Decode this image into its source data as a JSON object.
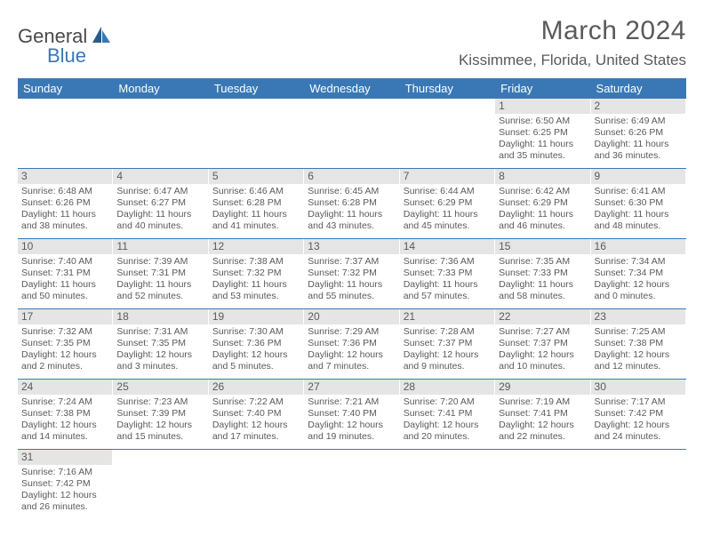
{
  "brand": {
    "part1": "General",
    "part2": "Blue"
  },
  "title": "March 2024",
  "location": "Kissimmee, Florida, United States",
  "colors": {
    "header_bg": "#3a78b5",
    "header_text": "#ffffff",
    "daynum_bg": "#e5e5e5",
    "text": "#5a5a5a",
    "row_divider": "#3a78b5"
  },
  "day_headers": [
    "Sunday",
    "Monday",
    "Tuesday",
    "Wednesday",
    "Thursday",
    "Friday",
    "Saturday"
  ],
  "weeks": [
    [
      {
        "n": "",
        "lines": []
      },
      {
        "n": "",
        "lines": []
      },
      {
        "n": "",
        "lines": []
      },
      {
        "n": "",
        "lines": []
      },
      {
        "n": "",
        "lines": []
      },
      {
        "n": "1",
        "lines": [
          "Sunrise: 6:50 AM",
          "Sunset: 6:25 PM",
          "Daylight: 11 hours",
          "and 35 minutes."
        ]
      },
      {
        "n": "2",
        "lines": [
          "Sunrise: 6:49 AM",
          "Sunset: 6:26 PM",
          "Daylight: 11 hours",
          "and 36 minutes."
        ]
      }
    ],
    [
      {
        "n": "3",
        "lines": [
          "Sunrise: 6:48 AM",
          "Sunset: 6:26 PM",
          "Daylight: 11 hours",
          "and 38 minutes."
        ]
      },
      {
        "n": "4",
        "lines": [
          "Sunrise: 6:47 AM",
          "Sunset: 6:27 PM",
          "Daylight: 11 hours",
          "and 40 minutes."
        ]
      },
      {
        "n": "5",
        "lines": [
          "Sunrise: 6:46 AM",
          "Sunset: 6:28 PM",
          "Daylight: 11 hours",
          "and 41 minutes."
        ]
      },
      {
        "n": "6",
        "lines": [
          "Sunrise: 6:45 AM",
          "Sunset: 6:28 PM",
          "Daylight: 11 hours",
          "and 43 minutes."
        ]
      },
      {
        "n": "7",
        "lines": [
          "Sunrise: 6:44 AM",
          "Sunset: 6:29 PM",
          "Daylight: 11 hours",
          "and 45 minutes."
        ]
      },
      {
        "n": "8",
        "lines": [
          "Sunrise: 6:42 AM",
          "Sunset: 6:29 PM",
          "Daylight: 11 hours",
          "and 46 minutes."
        ]
      },
      {
        "n": "9",
        "lines": [
          "Sunrise: 6:41 AM",
          "Sunset: 6:30 PM",
          "Daylight: 11 hours",
          "and 48 minutes."
        ]
      }
    ],
    [
      {
        "n": "10",
        "lines": [
          "Sunrise: 7:40 AM",
          "Sunset: 7:31 PM",
          "Daylight: 11 hours",
          "and 50 minutes."
        ]
      },
      {
        "n": "11",
        "lines": [
          "Sunrise: 7:39 AM",
          "Sunset: 7:31 PM",
          "Daylight: 11 hours",
          "and 52 minutes."
        ]
      },
      {
        "n": "12",
        "lines": [
          "Sunrise: 7:38 AM",
          "Sunset: 7:32 PM",
          "Daylight: 11 hours",
          "and 53 minutes."
        ]
      },
      {
        "n": "13",
        "lines": [
          "Sunrise: 7:37 AM",
          "Sunset: 7:32 PM",
          "Daylight: 11 hours",
          "and 55 minutes."
        ]
      },
      {
        "n": "14",
        "lines": [
          "Sunrise: 7:36 AM",
          "Sunset: 7:33 PM",
          "Daylight: 11 hours",
          "and 57 minutes."
        ]
      },
      {
        "n": "15",
        "lines": [
          "Sunrise: 7:35 AM",
          "Sunset: 7:33 PM",
          "Daylight: 11 hours",
          "and 58 minutes."
        ]
      },
      {
        "n": "16",
        "lines": [
          "Sunrise: 7:34 AM",
          "Sunset: 7:34 PM",
          "Daylight: 12 hours",
          "and 0 minutes."
        ]
      }
    ],
    [
      {
        "n": "17",
        "lines": [
          "Sunrise: 7:32 AM",
          "Sunset: 7:35 PM",
          "Daylight: 12 hours",
          "and 2 minutes."
        ]
      },
      {
        "n": "18",
        "lines": [
          "Sunrise: 7:31 AM",
          "Sunset: 7:35 PM",
          "Daylight: 12 hours",
          "and 3 minutes."
        ]
      },
      {
        "n": "19",
        "lines": [
          "Sunrise: 7:30 AM",
          "Sunset: 7:36 PM",
          "Daylight: 12 hours",
          "and 5 minutes."
        ]
      },
      {
        "n": "20",
        "lines": [
          "Sunrise: 7:29 AM",
          "Sunset: 7:36 PM",
          "Daylight: 12 hours",
          "and 7 minutes."
        ]
      },
      {
        "n": "21",
        "lines": [
          "Sunrise: 7:28 AM",
          "Sunset: 7:37 PM",
          "Daylight: 12 hours",
          "and 9 minutes."
        ]
      },
      {
        "n": "22",
        "lines": [
          "Sunrise: 7:27 AM",
          "Sunset: 7:37 PM",
          "Daylight: 12 hours",
          "and 10 minutes."
        ]
      },
      {
        "n": "23",
        "lines": [
          "Sunrise: 7:25 AM",
          "Sunset: 7:38 PM",
          "Daylight: 12 hours",
          "and 12 minutes."
        ]
      }
    ],
    [
      {
        "n": "24",
        "lines": [
          "Sunrise: 7:24 AM",
          "Sunset: 7:38 PM",
          "Daylight: 12 hours",
          "and 14 minutes."
        ]
      },
      {
        "n": "25",
        "lines": [
          "Sunrise: 7:23 AM",
          "Sunset: 7:39 PM",
          "Daylight: 12 hours",
          "and 15 minutes."
        ]
      },
      {
        "n": "26",
        "lines": [
          "Sunrise: 7:22 AM",
          "Sunset: 7:40 PM",
          "Daylight: 12 hours",
          "and 17 minutes."
        ]
      },
      {
        "n": "27",
        "lines": [
          "Sunrise: 7:21 AM",
          "Sunset: 7:40 PM",
          "Daylight: 12 hours",
          "and 19 minutes."
        ]
      },
      {
        "n": "28",
        "lines": [
          "Sunrise: 7:20 AM",
          "Sunset: 7:41 PM",
          "Daylight: 12 hours",
          "and 20 minutes."
        ]
      },
      {
        "n": "29",
        "lines": [
          "Sunrise: 7:19 AM",
          "Sunset: 7:41 PM",
          "Daylight: 12 hours",
          "and 22 minutes."
        ]
      },
      {
        "n": "30",
        "lines": [
          "Sunrise: 7:17 AM",
          "Sunset: 7:42 PM",
          "Daylight: 12 hours",
          "and 24 minutes."
        ]
      }
    ],
    [
      {
        "n": "31",
        "lines": [
          "Sunrise: 7:16 AM",
          "Sunset: 7:42 PM",
          "Daylight: 12 hours",
          "and 26 minutes."
        ]
      },
      {
        "n": "",
        "lines": []
      },
      {
        "n": "",
        "lines": []
      },
      {
        "n": "",
        "lines": []
      },
      {
        "n": "",
        "lines": []
      },
      {
        "n": "",
        "lines": []
      },
      {
        "n": "",
        "lines": []
      }
    ]
  ]
}
